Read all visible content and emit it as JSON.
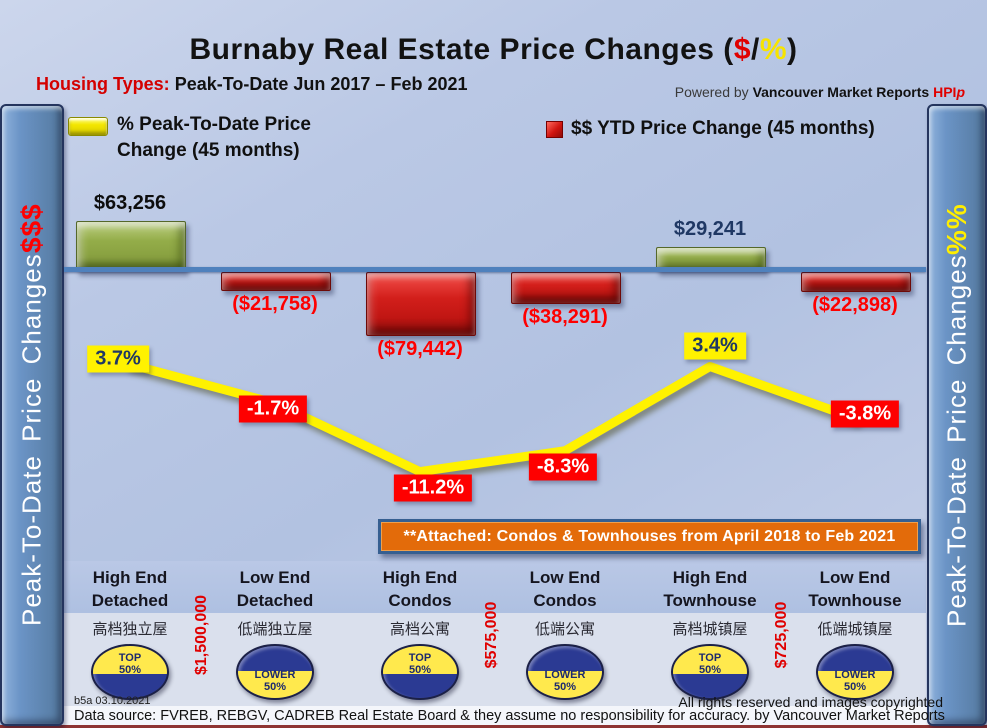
{
  "header": {
    "title": {
      "prefix": "Burnaby Real Estate Price Changes (",
      "dollar": "$",
      "slash": "/",
      "percent": "%",
      "suffix": ")"
    },
    "subtitle": {
      "label": "Housing Types:",
      "text": " Peak-To-Date Jun 2017 – Feb 2021"
    },
    "powered": {
      "prefix": "Powered by ",
      "brand": "Vancouver Market Reports ",
      "hpi": "HPI",
      "p": "p"
    }
  },
  "legend": {
    "pct": {
      "label": "% Peak-To-Date Price\nChange (45 months)"
    },
    "usd": {
      "label": "$$ YTD Price Change (45 months)"
    }
  },
  "sidebars": {
    "left": {
      "text": "Peak-To-Date Price Changes ",
      "suffix": "$$$"
    },
    "right": {
      "text": "Peak-To-Date  Price  Changes  ",
      "suffix": "%%"
    }
  },
  "banner": {
    "text": "**Attached: Condos & Townhouses from April 2018 to Feb 2021"
  },
  "categories": [
    {
      "line1": "High End",
      "line2": "Detached",
      "chinese": "高档独立屋",
      "badge": {
        "type": "top",
        "line1": "TOP",
        "line2": "50%"
      }
    },
    {
      "line1": "Low End",
      "line2": "Detached",
      "chinese": "低端独立屋",
      "badge": {
        "type": "lower",
        "line1": "LOWER",
        "line2": "50%"
      }
    },
    {
      "line1": "High End",
      "line2": "Condos",
      "chinese": "高档公寓",
      "badge": {
        "type": "top",
        "line1": "TOP",
        "line2": "50%"
      }
    },
    {
      "line1": "Low End",
      "line2": "Condos",
      "chinese": "低端公寓",
      "badge": {
        "type": "lower",
        "line1": "LOWER",
        "line2": "50%"
      }
    },
    {
      "line1": "High End",
      "line2": "Townhouse",
      "chinese": "高档城镇屋",
      "badge": {
        "type": "top",
        "line1": "TOP",
        "line2": "50%"
      }
    },
    {
      "line1": "Low End",
      "line2": "Townhouse",
      "chinese": "低端城镇屋",
      "badge": {
        "type": "lower",
        "line1": "LOWER",
        "line2": "50%"
      }
    }
  ],
  "price_thresholds": [
    {
      "text": "$1,500,000",
      "between": [
        0,
        1
      ]
    },
    {
      "text": "$575,000",
      "between": [
        2,
        3
      ]
    },
    {
      "text": "$725,000",
      "between": [
        4,
        5
      ]
    }
  ],
  "chart_data": {
    "type": "combo",
    "title": "Burnaby Real Estate Price Changes ($/%)",
    "period": "Peak-To-Date Jun 2017 – Feb 2021",
    "categories": [
      "High End Detached",
      "Low End Detached",
      "High End Condos",
      "Low End Condos",
      "High End Townhouse",
      "Low End Townhouse"
    ],
    "series": [
      {
        "name": "$$ YTD Price Change (45 months)",
        "type": "bar",
        "values": [
          63256,
          -21758,
          -79442,
          -38291,
          29241,
          -22898
        ],
        "labels": [
          "$63,256",
          "($21,758)",
          "($79,442)",
          "($38,291)",
          "$29,241",
          "($22,898)"
        ],
        "label_colors": [
          "#0d0d0d",
          "#fe0000",
          "#fe0000",
          "#fe0000",
          "#1f3864",
          "#fe0000"
        ],
        "bar_colors": [
          "#94ad49",
          "#d02321",
          "#d02321",
          "#d02321",
          "#94ad49",
          "#d02321"
        ]
      },
      {
        "name": "% Peak-To-Date Price Change (45 months)",
        "type": "line",
        "values": [
          3.7,
          -1.7,
          -11.2,
          -8.3,
          3.4,
          -3.8
        ],
        "labels": [
          "3.7%",
          "-1.7%",
          "-11.2%",
          "-8.3%",
          "3.4%",
          "-3.8%"
        ],
        "color": "#fff200"
      }
    ],
    "baseline": 0,
    "grid": false,
    "legend_position": "top"
  },
  "footer": {
    "version": "b5a 03.10.2021",
    "rights": "All rights reserved and  images copyrighted",
    "source": "Data source: FVREB, REBGV, CADREB Real Estate Board & they assume no responsibility for accuracy. by Vancouver Market Reports"
  },
  "colors": {
    "accent_red": "#fe0000",
    "accent_yellow": "#fff200",
    "bar_green": "#94ad49",
    "bar_red": "#d02321",
    "sidebar_blue": "#5b86bb",
    "axis_blue": "#4f81bd",
    "banner_orange": "#e36b0a",
    "badge_navy": "#2b3a93",
    "badge_yellow": "#ffe94d"
  }
}
